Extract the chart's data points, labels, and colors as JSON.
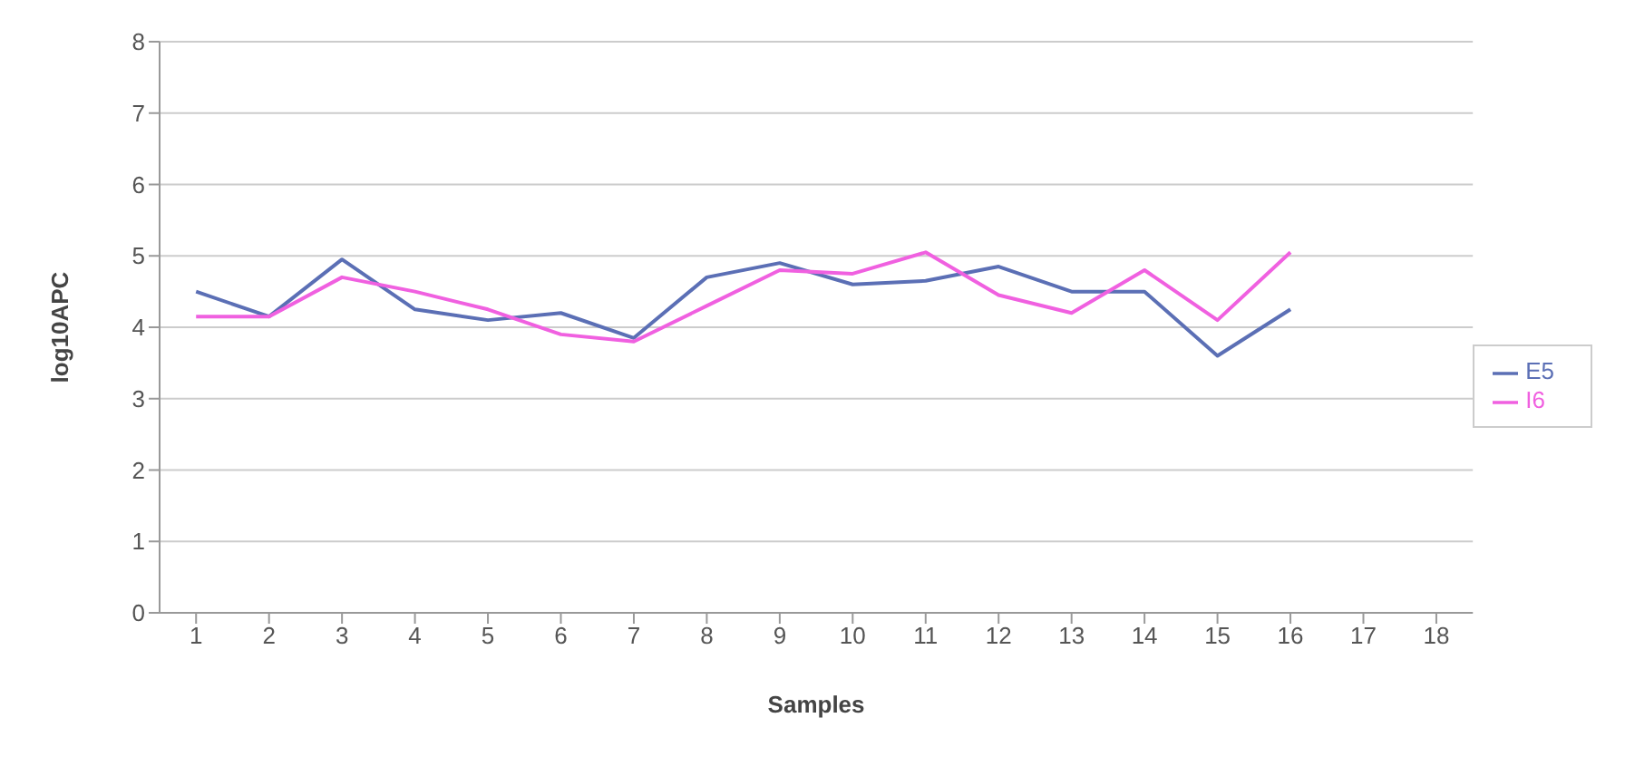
{
  "chart_data": {
    "type": "line",
    "xlabel": "Samples",
    "ylabel": "log10APC",
    "x": [
      1,
      2,
      3,
      4,
      5,
      6,
      7,
      8,
      9,
      10,
      11,
      12,
      13,
      14,
      15,
      16
    ],
    "series": [
      {
        "name": "E5",
        "color": "#5b6fb5",
        "values": [
          4.5,
          4.15,
          4.95,
          4.25,
          4.1,
          4.2,
          3.85,
          4.7,
          4.9,
          4.6,
          4.65,
          4.85,
          4.5,
          4.5,
          3.6,
          4.25
        ]
      },
      {
        "name": "I6",
        "color": "#f060e0",
        "values": [
          4.15,
          4.15,
          4.7,
          4.5,
          4.25,
          3.9,
          3.8,
          4.3,
          4.8,
          4.75,
          5.05,
          4.45,
          4.2,
          4.8,
          4.1,
          5.05
        ]
      }
    ],
    "xlim": [
      0.5,
      18.5
    ],
    "xticks": [
      1,
      2,
      3,
      4,
      5,
      6,
      7,
      8,
      9,
      10,
      11,
      12,
      13,
      14,
      15,
      16,
      17,
      18
    ],
    "ylim": [
      0,
      8
    ],
    "yticks": [
      0,
      1,
      2,
      3,
      4,
      5,
      6,
      7,
      8
    ],
    "grid": "y",
    "legend": "right",
    "marker": "none",
    "line_style": "solid"
  }
}
